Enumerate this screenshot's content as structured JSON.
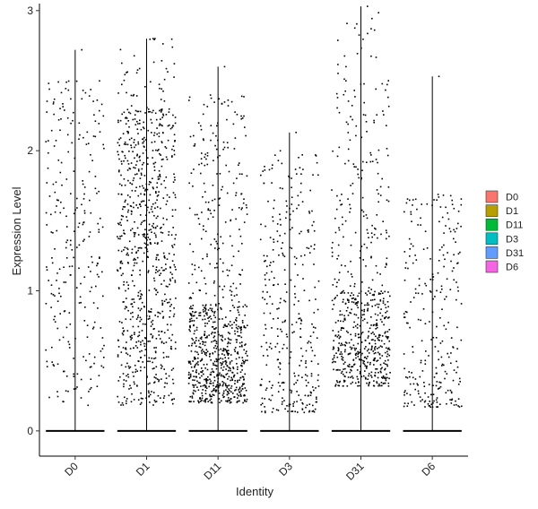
{
  "chart_data": {
    "type": "violin",
    "title": "",
    "xlabel": "Identity",
    "ylabel": "Expression Level",
    "categories": [
      "D0",
      "D1",
      "D11",
      "D3",
      "D31",
      "D6"
    ],
    "ylim": [
      -0.18,
      3.05
    ],
    "yticks": [
      0,
      1,
      2,
      3
    ],
    "zero_line": 0,
    "max_values": [
      2.72,
      2.8,
      2.6,
      2.13,
      3.03,
      2.53
    ],
    "point_clusters": [
      [
        {
          "count": 260,
          "lo": 0.18,
          "hi": 2.5,
          "skew": 1.0
        }
      ],
      [
        {
          "count": 780,
          "lo": 0.18,
          "hi": 2.3,
          "skew": 1.0
        },
        {
          "count": 40,
          "lo": 2.3,
          "hi": 2.8,
          "skew": 1.0
        }
      ],
      [
        {
          "count": 420,
          "lo": 0.2,
          "hi": 0.9,
          "skew": 1.0
        },
        {
          "count": 380,
          "lo": 0.2,
          "hi": 2.4,
          "skew": 1.6
        }
      ],
      [
        {
          "count": 330,
          "lo": 0.13,
          "hi": 2.0,
          "skew": 1.4
        }
      ],
      [
        {
          "count": 320,
          "lo": 0.32,
          "hi": 1.0,
          "skew": 1.0
        },
        {
          "count": 300,
          "lo": 0.32,
          "hi": 2.5,
          "skew": 1.5
        },
        {
          "count": 20,
          "lo": 2.5,
          "hi": 3.0,
          "skew": 1.0
        }
      ],
      [
        {
          "count": 260,
          "lo": 0.17,
          "hi": 1.7,
          "skew": 1.5
        }
      ]
    ],
    "legend": {
      "position": "right",
      "entries": [
        {
          "label": "D0",
          "color": "#F8766D"
        },
        {
          "label": "D1",
          "color": "#B79F00"
        },
        {
          "label": "D11",
          "color": "#00BA38"
        },
        {
          "label": "D3",
          "color": "#00BFC4"
        },
        {
          "label": "D31",
          "color": "#619CFF"
        },
        {
          "label": "D6",
          "color": "#F564E3"
        }
      ]
    },
    "point_color": "#000000",
    "grid": false
  }
}
